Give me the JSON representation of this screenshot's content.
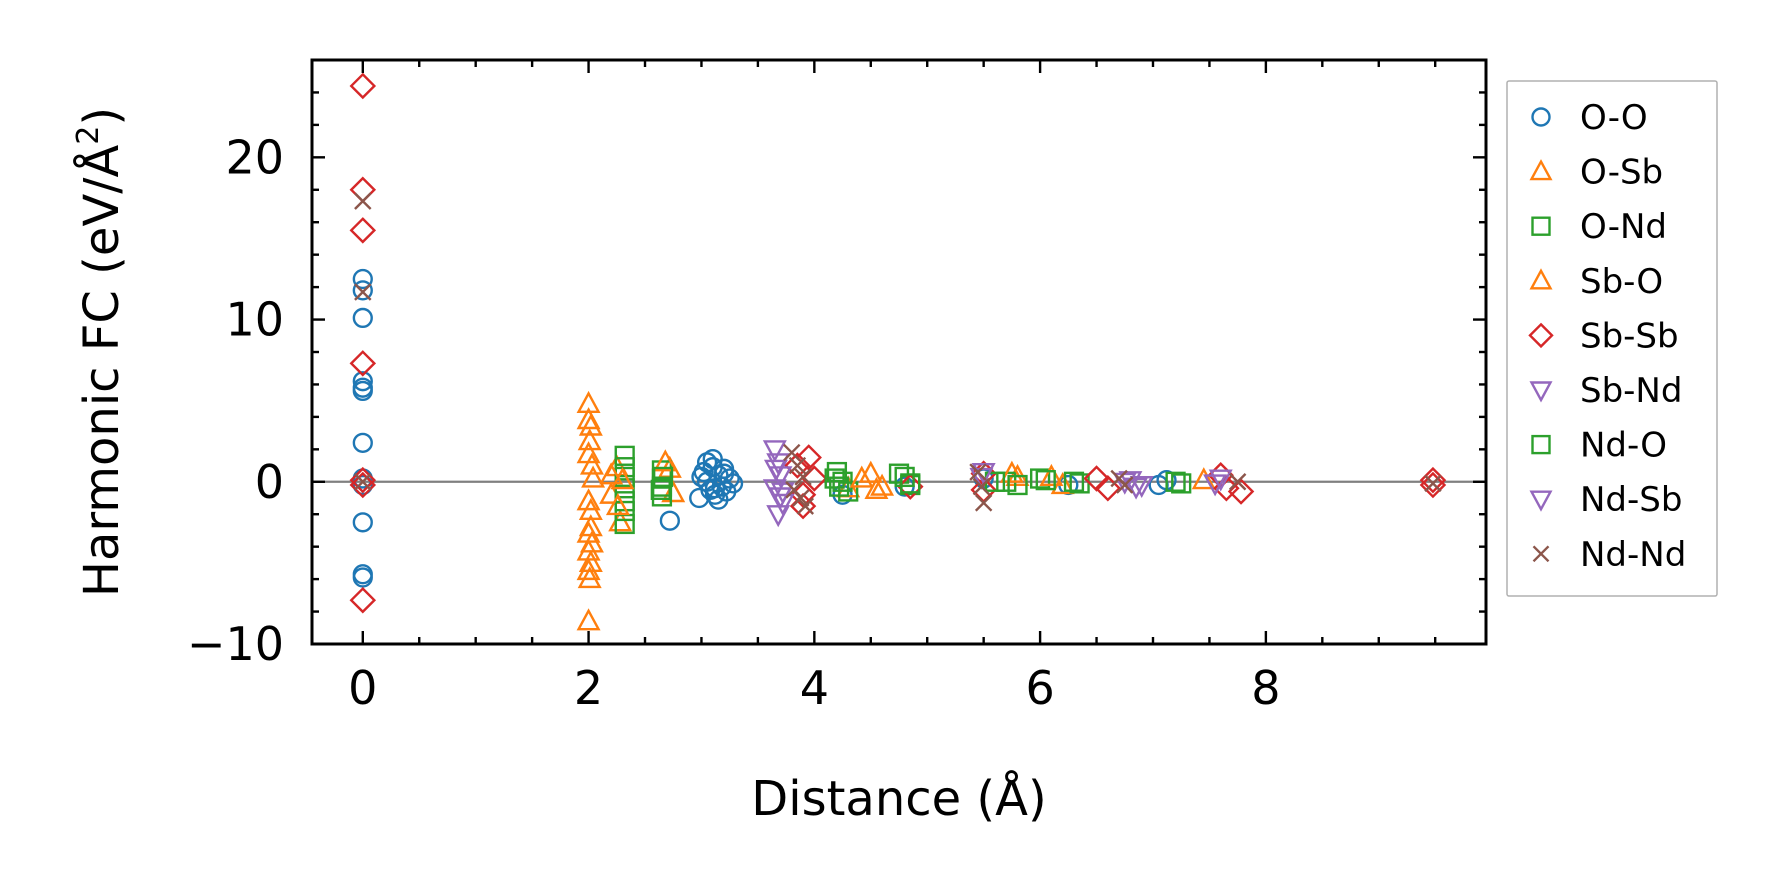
{
  "chart_data": {
    "type": "scatter",
    "title": "",
    "xlabel": "Distance (Å)",
    "ylabel_main": "Harmonic FC (eV/Å",
    "ylabel_sup": "2",
    "ylabel_close": ")",
    "xlim": [
      -0.45,
      9.95
    ],
    "ylim": [
      -10,
      26
    ],
    "xticks": [
      0,
      2,
      4,
      6,
      8
    ],
    "xtick_labels": [
      "0",
      "2",
      "4",
      "6",
      "8"
    ],
    "yticks": [
      -10,
      0,
      10,
      20
    ],
    "ytick_labels": [
      "−10",
      "0",
      "10",
      "20"
    ],
    "zero_line": 0,
    "legend_position": "outside-right",
    "series": [
      {
        "name": "O-O",
        "marker": "circle",
        "color": "#1f77b4",
        "x": [
          0,
          0,
          0,
          0,
          0,
          0,
          0,
          0,
          0,
          0,
          0,
          0,
          2.72,
          2.98,
          3.02,
          3.05,
          3.08,
          3.1,
          3.12,
          3.15,
          3.18,
          3.2,
          3.22,
          3.25,
          3.28,
          3.05,
          3.1,
          3.15,
          3.2,
          3.0,
          3.12,
          4.25,
          4.8,
          5.5,
          6.25,
          7.05,
          7.12
        ],
        "y": [
          12.5,
          11.8,
          10.1,
          6.2,
          5.8,
          5.6,
          2.4,
          -2.5,
          -5.7,
          -5.9,
          0.2,
          -0.2,
          -2.4,
          -1.0,
          0.6,
          1.2,
          -0.5,
          0.9,
          -0.8,
          0.4,
          -0.3,
          0.5,
          -0.6,
          0.2,
          -0.1,
          0.0,
          1.4,
          -1.1,
          0.8,
          0.3,
          -0.4,
          -0.8,
          -0.3,
          0.2,
          -0.2,
          -0.2,
          0.1
        ]
      },
      {
        "name": "O-Sb",
        "marker": "triangle-up",
        "color": "#ff7f0e",
        "x": [
          2.0,
          2.0,
          2.02,
          2.0,
          2.03,
          2.0,
          2.02,
          2.0,
          2.03,
          2.0,
          2.02,
          2.0,
          2.01,
          2.0,
          2.25,
          2.2,
          2.28,
          2.72,
          2.75,
          4.3,
          4.5,
          4.55,
          5.8,
          6.2
        ],
        "y": [
          4.8,
          3.8,
          3.4,
          1.7,
          1.0,
          -1.2,
          -1.8,
          -3.2,
          -3.8,
          -4.3,
          -5.0,
          -5.5,
          -6.0,
          -8.6,
          0.9,
          -0.8,
          -2.5,
          0.8,
          -0.7,
          -0.4,
          0.5,
          -0.5,
          0.3,
          -0.2
        ]
      },
      {
        "name": "O-Nd",
        "marker": "square",
        "color": "#2ca02c",
        "x": [
          2.32,
          2.32,
          2.32,
          2.32,
          2.32,
          2.32,
          2.32,
          2.65,
          2.65,
          2.65,
          2.65,
          4.2,
          4.25,
          4.3,
          4.75,
          4.85,
          5.7,
          6.0,
          6.35,
          7.2,
          7.25
        ],
        "y": [
          1.6,
          0.9,
          0.3,
          -0.4,
          -1.2,
          -1.8,
          -2.6,
          0.7,
          0.2,
          -0.3,
          -0.9,
          0.6,
          0.0,
          -0.6,
          0.5,
          -0.2,
          0.0,
          0.2,
          -0.1,
          0.0,
          -0.1
        ]
      },
      {
        "name": "Sb-O",
        "marker": "triangle-up",
        "color": "#ff7f0e",
        "x": [
          2.01,
          2.04,
          2.02,
          2.2,
          2.26,
          2.3,
          2.68,
          4.42,
          4.6,
          5.75,
          6.1,
          7.45
        ],
        "y": [
          2.5,
          0.2,
          -2.8,
          0.4,
          -1.5,
          0.1,
          1.2,
          0.2,
          -0.3,
          0.5,
          0.3,
          0.1
        ]
      },
      {
        "name": "Sb-Sb",
        "marker": "diamond",
        "color": "#d62728",
        "x": [
          0,
          0,
          0,
          0,
          0,
          0,
          0,
          3.85,
          3.9,
          3.95,
          3.9,
          4.0,
          4.85,
          5.5,
          5.5,
          6.5,
          6.6,
          7.6,
          7.65,
          7.78,
          9.48,
          9.48
        ],
        "y": [
          24.4,
          18.0,
          15.5,
          7.3,
          0.1,
          -0.2,
          -7.3,
          1.0,
          -0.8,
          1.5,
          -1.5,
          0.2,
          -0.3,
          0.5,
          -0.5,
          0.2,
          -0.4,
          0.4,
          -0.4,
          -0.6,
          0.1,
          -0.2
        ]
      },
      {
        "name": "Sb-Nd",
        "marker": "triangle-down",
        "color": "#9467bd",
        "x": [
          3.65,
          3.68,
          3.7,
          3.65,
          3.7,
          3.72,
          3.68,
          5.5,
          6.75,
          6.85,
          7.6
        ],
        "y": [
          2.0,
          1.2,
          0.4,
          -0.4,
          -0.9,
          -1.3,
          -2.0,
          0.6,
          0.0,
          -0.3,
          0.2
        ]
      },
      {
        "name": "Nd-O",
        "marker": "square",
        "color": "#2ca02c",
        "x": [
          2.66,
          2.64,
          4.18,
          4.22,
          4.8,
          4.85,
          5.6,
          5.8,
          6.05,
          6.3
        ],
        "y": [
          0.3,
          -0.5,
          0.2,
          -0.3,
          0.3,
          -0.1,
          0.0,
          -0.2,
          0.1,
          0.0
        ]
      },
      {
        "name": "Nd-Sb",
        "marker": "triangle-down",
        "color": "#9467bd",
        "x": [
          3.66,
          3.72,
          5.48,
          6.8,
          6.9,
          7.55
        ],
        "y": [
          0.8,
          -0.6,
          0.3,
          0.1,
          -0.2,
          -0.1
        ]
      },
      {
        "name": "Nd-Nd",
        "marker": "x",
        "color": "#8c564b",
        "x": [
          0,
          0,
          0,
          3.8,
          3.85,
          3.9,
          3.82,
          3.88,
          3.92,
          5.45,
          5.5,
          5.48,
          6.7,
          6.75,
          7.75,
          9.48
        ],
        "y": [
          17.3,
          11.7,
          0.0,
          1.8,
          1.0,
          0.3,
          -0.5,
          -1.0,
          -1.5,
          0.6,
          -1.3,
          -0.3,
          0.2,
          -0.2,
          0.0,
          -0.1
        ]
      }
    ]
  }
}
